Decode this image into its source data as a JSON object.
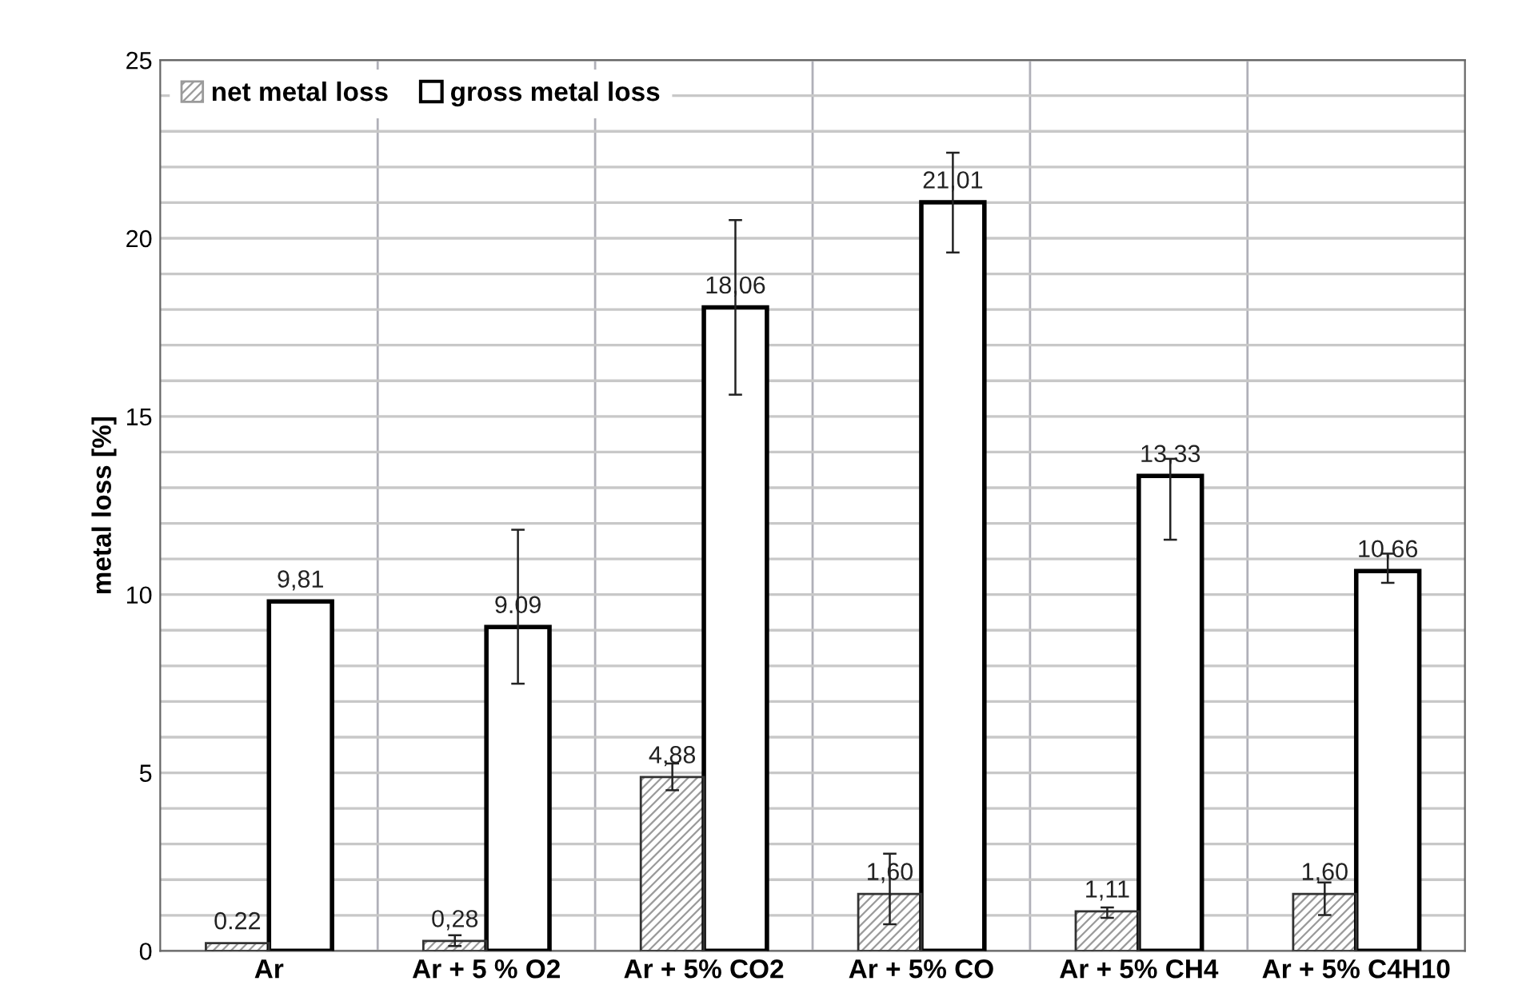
{
  "chart_data": {
    "type": "bar",
    "ylabel": "metal loss [%]",
    "categories": [
      "Ar",
      "Ar + 5 % O2",
      "Ar + 5% CO2",
      "Ar + 5% CO",
      "Ar + 5% CH4",
      "Ar + 5% C4H10"
    ],
    "series": [
      {
        "name": "net metal loss",
        "color": "#9a9a9a",
        "values": [
          0.22,
          0.28,
          4.88,
          1.6,
          1.11,
          1.6
        ],
        "errors": [
          null,
          [
            0.14,
            0.44
          ],
          [
            4.51,
            5.26
          ],
          [
            0.75,
            2.73
          ],
          [
            0.93,
            1.22
          ],
          [
            1.01,
            1.92
          ]
        ],
        "value_labels": [
          "0.22",
          "0,28",
          "4,88",
          "1,60",
          "1,11",
          "1,60"
        ]
      },
      {
        "name": "gross metal loss",
        "color": "#ffffff",
        "values": [
          9.81,
          9.09,
          18.06,
          21.01,
          13.33,
          10.66
        ],
        "errors": [
          null,
          [
            7.5,
            11.82
          ],
          [
            15.61,
            20.51
          ],
          [
            19.6,
            22.4
          ],
          [
            11.54,
            13.81
          ],
          [
            10.33,
            11.15
          ]
        ],
        "value_labels": [
          "9,81",
          "9.09",
          "18,06",
          "21,01",
          "13,33",
          "10,66"
        ]
      }
    ],
    "ylim": [
      0,
      25
    ],
    "yticks": [
      0,
      {
        "value": 1,
        "label": null
      },
      {
        "value": 2,
        "label": null
      },
      {
        "value": 3,
        "label": null
      },
      {
        "value": 4,
        "label": null
      },
      5,
      {
        "value": 6,
        "label": null
      },
      {
        "value": 7,
        "label": null
      },
      {
        "value": 8,
        "label": null
      },
      {
        "value": 9,
        "label": null
      },
      10,
      {
        "value": 11,
        "label": null
      },
      {
        "value": 12,
        "label": null
      },
      {
        "value": 13,
        "label": null
      },
      {
        "value": 14,
        "label": null
      },
      15,
      {
        "value": 16,
        "label": null
      },
      {
        "value": 17,
        "label": null
      },
      {
        "value": 18,
        "label": null
      },
      {
        "value": 19,
        "label": null
      },
      20,
      {
        "value": 21,
        "label": null
      },
      {
        "value": 22,
        "label": null
      },
      {
        "value": 23,
        "label": null
      },
      {
        "value": 24,
        "label": null
      },
      25
    ],
    "grid": true,
    "legend": "top left"
  }
}
